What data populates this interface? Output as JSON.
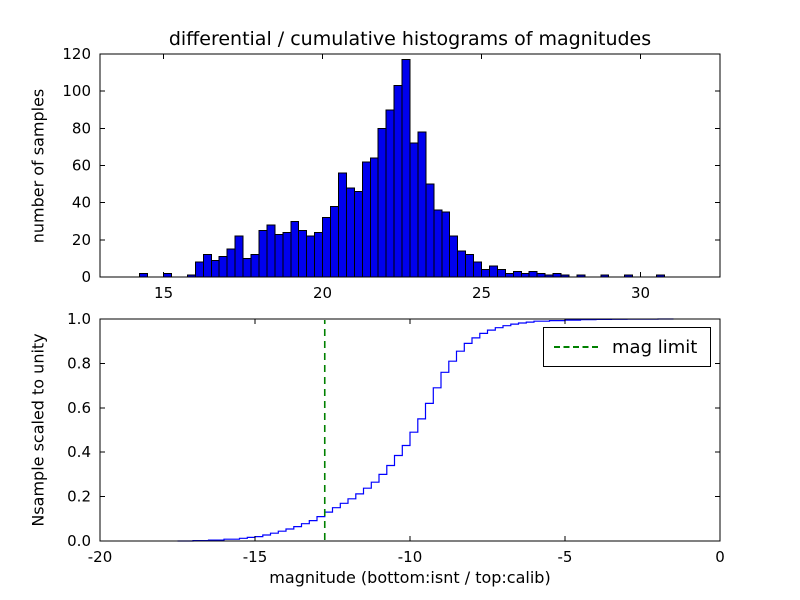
{
  "chart_data": [
    {
      "type": "bar",
      "title": "differential / cumulative histograms of magnitudes",
      "ylabel": "number of samples",
      "xlim": [
        13.0,
        32.5
      ],
      "ylim": [
        0,
        120
      ],
      "xticks": [
        15,
        20,
        25,
        30
      ],
      "xticklabels": [
        "15",
        "20",
        "25",
        "30"
      ],
      "yticks": [
        0,
        20,
        40,
        60,
        80,
        100,
        120
      ],
      "yticklabels": [
        "0",
        "20",
        "40",
        "60",
        "80",
        "100",
        "120"
      ],
      "bins": {
        "start": 14.0,
        "width": 0.25,
        "counts": [
          0,
          2,
          0,
          0,
          2,
          0,
          0,
          1,
          8,
          12,
          9,
          11,
          15,
          22,
          10,
          12,
          25,
          28,
          23,
          24,
          30,
          25,
          22,
          24,
          32,
          38,
          56,
          48,
          46,
          62,
          64,
          80,
          90,
          103,
          117,
          72,
          78,
          50,
          36,
          35,
          22,
          14,
          12,
          8,
          4,
          6,
          4,
          2,
          3,
          2,
          3,
          2,
          1,
          2,
          1,
          0,
          1,
          0,
          0,
          1,
          0,
          0,
          1,
          0,
          0,
          0,
          1,
          0,
          0,
          0
        ]
      },
      "colors": {
        "bar_fill": "#0000ee",
        "bar_edge": "#000000",
        "frame": "#000000"
      }
    },
    {
      "type": "line",
      "ylabel": "Nsample scaled to unity",
      "xlabel": "magnitude (bottom:isnt / top:calib)",
      "xlim": [
        -20,
        0
      ],
      "ylim": [
        0,
        1
      ],
      "xticks": [
        -20,
        -15,
        -10,
        -5,
        0
      ],
      "xticklabels": [
        "-20",
        "-15",
        "-10",
        "-5",
        "0"
      ],
      "yticks": [
        0,
        0.2,
        0.4,
        0.6,
        0.8,
        1.0
      ],
      "yticklabels": [
        "0.0",
        "0.2",
        "0.4",
        "0.6",
        "0.8",
        "1.0"
      ],
      "colors": {
        "line": "#0000ff",
        "frame": "#000000"
      },
      "steps": {
        "x": [
          -17.5,
          -17.0,
          -16.5,
          -16.0,
          -15.5,
          -15.25,
          -15.0,
          -14.75,
          -14.5,
          -14.25,
          -14.0,
          -13.75,
          -13.5,
          -13.25,
          -13.0,
          -12.75,
          -12.5,
          -12.25,
          -12.0,
          -11.75,
          -11.5,
          -11.25,
          -11.0,
          -10.75,
          -10.5,
          -10.25,
          -10.0,
          -9.75,
          -9.5,
          -9.25,
          -9.0,
          -8.75,
          -8.5,
          -8.25,
          -8.0,
          -7.75,
          -7.5,
          -7.25,
          -7.0,
          -6.75,
          -6.5,
          -6.25,
          -6.0,
          -5.5,
          -5.0,
          -4.5,
          -4.0,
          -3.5,
          -3.0,
          -2.5,
          -2.0,
          -1.5
        ],
        "y": [
          0,
          0.002,
          0.004,
          0.008,
          0.012,
          0.016,
          0.02,
          0.027,
          0.035,
          0.044,
          0.054,
          0.065,
          0.078,
          0.092,
          0.11,
          0.13,
          0.15,
          0.17,
          0.19,
          0.212,
          0.238,
          0.265,
          0.3,
          0.34,
          0.385,
          0.43,
          0.49,
          0.55,
          0.62,
          0.69,
          0.76,
          0.81,
          0.855,
          0.89,
          0.915,
          0.935,
          0.95,
          0.961,
          0.97,
          0.977,
          0.982,
          0.986,
          0.99,
          0.993,
          0.995,
          0.997,
          0.998,
          0.9985,
          0.999,
          0.9995,
          1.0,
          1.0
        ]
      },
      "mag_limit": {
        "x": -12.75,
        "color": "#008000",
        "style": "dashed"
      },
      "legend": {
        "label": "mag limit",
        "position": "upper right"
      }
    }
  ]
}
